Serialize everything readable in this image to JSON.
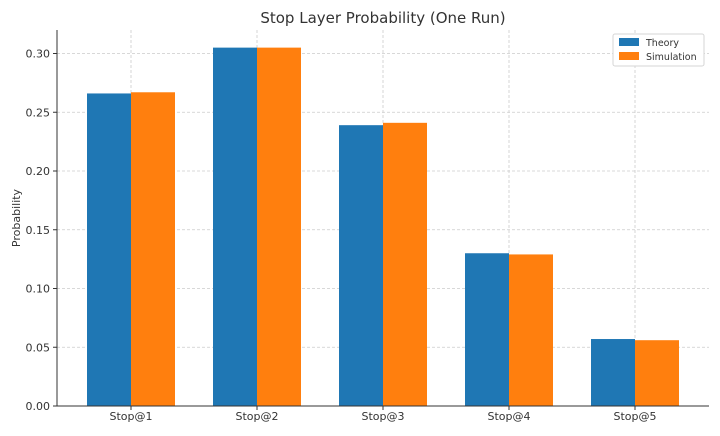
{
  "chart_data": {
    "type": "bar",
    "title": "Stop Layer Probability (One Run)",
    "xlabel": "",
    "ylabel": "Probability",
    "categories": [
      "Stop@1",
      "Stop@2",
      "Stop@3",
      "Stop@4",
      "Stop@5"
    ],
    "series": [
      {
        "name": "Theory",
        "color": "#1f77b4",
        "values": [
          0.266,
          0.305,
          0.239,
          0.13,
          0.057
        ]
      },
      {
        "name": "Simulation",
        "color": "#ff7f0e",
        "values": [
          0.267,
          0.305,
          0.241,
          0.129,
          0.056
        ]
      }
    ],
    "ylim": [
      0,
      0.32
    ],
    "yticks": [
      "0.00",
      "0.05",
      "0.10",
      "0.15",
      "0.20",
      "0.25",
      "0.30"
    ],
    "grid": true,
    "legend_position": "top-right"
  }
}
